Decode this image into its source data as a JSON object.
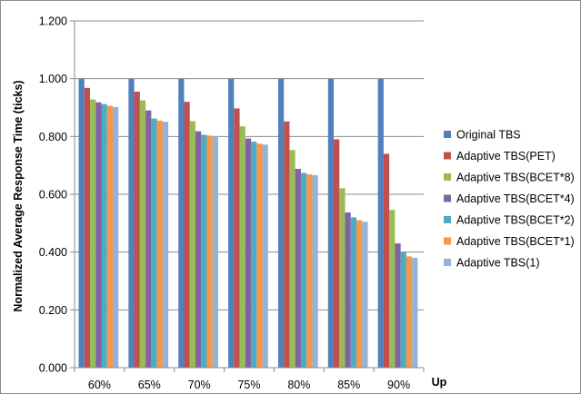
{
  "chart_data": {
    "type": "bar",
    "title": "",
    "xlabel": "Up",
    "ylabel": "Normalized Average Response Time (ticks)",
    "ylim": [
      0,
      1.2
    ],
    "yticks": [
      "0.000",
      "0.200",
      "0.400",
      "0.600",
      "0.800",
      "1.000",
      "1.200"
    ],
    "grid": true,
    "legend_position": "right",
    "categories": [
      "60%",
      "65%",
      "70%",
      "75%",
      "80%",
      "85%",
      "90%"
    ],
    "series": [
      {
        "name": "Original TBS",
        "color": "#4f81bd",
        "values": [
          1.0,
          1.0,
          1.0,
          1.0,
          1.0,
          1.0,
          1.0
        ]
      },
      {
        "name": "Adaptive TBS(PET)",
        "color": "#c0504d",
        "values": [
          0.968,
          0.955,
          0.92,
          0.897,
          0.852,
          0.79,
          0.74
        ]
      },
      {
        "name": "Adaptive TBS(BCET*8)",
        "color": "#9bbb59",
        "values": [
          0.928,
          0.925,
          0.853,
          0.835,
          0.753,
          0.621,
          0.546
        ]
      },
      {
        "name": "Adaptive TBS(BCET*4)",
        "color": "#8064a2",
        "values": [
          0.918,
          0.89,
          0.818,
          0.793,
          0.688,
          0.537,
          0.43
        ]
      },
      {
        "name": "Adaptive TBS(BCET*2)",
        "color": "#4bacc6",
        "values": [
          0.912,
          0.862,
          0.806,
          0.782,
          0.674,
          0.52,
          0.4
        ]
      },
      {
        "name": "Adaptive TBS(BCET*1)",
        "color": "#f79646",
        "values": [
          0.906,
          0.855,
          0.803,
          0.775,
          0.669,
          0.51,
          0.385
        ]
      },
      {
        "name": "Adaptive TBS(1)",
        "color": "#95b3d7",
        "values": [
          0.902,
          0.851,
          0.8,
          0.772,
          0.666,
          0.505,
          0.38
        ]
      }
    ]
  }
}
